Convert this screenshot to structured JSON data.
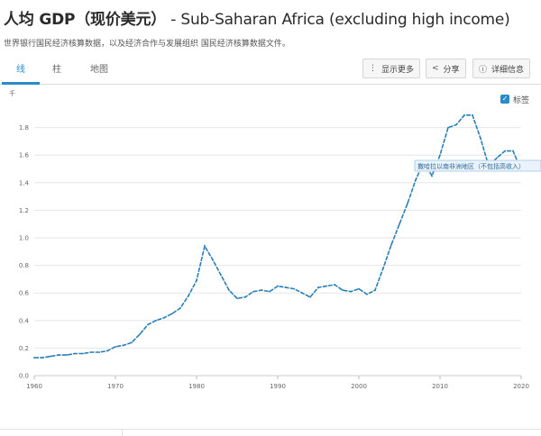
{
  "header": {
    "title_cn": "人均 GDP（现价美元）",
    "title_en": " - Sub-Saharan Africa (excluding high income)",
    "subtitle": "世界银行国民经济核算数据，以及经济合作与发展组织 国民经济核算数据文件。"
  },
  "tabs": [
    {
      "label": "线"
    },
    {
      "label": "柱"
    },
    {
      "label": "地图"
    }
  ],
  "toolbar": {
    "more_label": "显示更多",
    "share_label": "分享",
    "details_label": "详细信息"
  },
  "legend": {
    "label": "标签",
    "checked": "✓"
  },
  "chart_data": {
    "type": "line",
    "y_unit": "千",
    "ylim": [
      0,
      2.0
    ],
    "y_ticks": [
      "0.0",
      "0.2",
      "0.4",
      "0.6",
      "0.8",
      "1.0",
      "1.2",
      "1.4",
      "1.6",
      "1.8"
    ],
    "x_ticks": [
      "1960",
      "1970",
      "1980",
      "1990",
      "2000",
      "2010",
      "2020"
    ],
    "line_color": "#2a7fb8",
    "series": [
      {
        "name": "撒哈拉以南非洲地区（不包括高收入）",
        "x": [
          1960,
          1961,
          1962,
          1963,
          1964,
          1965,
          1966,
          1967,
          1968,
          1969,
          1970,
          1971,
          1972,
          1973,
          1974,
          1975,
          1976,
          1977,
          1978,
          1979,
          1980,
          1981,
          1982,
          1983,
          1984,
          1985,
          1986,
          1987,
          1988,
          1989,
          1990,
          1991,
          1992,
          1993,
          1994,
          1995,
          1996,
          1997,
          1998,
          1999,
          2000,
          2001,
          2002,
          2003,
          2004,
          2005,
          2006,
          2007,
          2008,
          2009,
          2010,
          2011,
          2012,
          2013,
          2014,
          2015,
          2016,
          2017,
          2018,
          2019,
          2020
        ],
        "values": [
          0.13,
          0.13,
          0.14,
          0.15,
          0.15,
          0.16,
          0.16,
          0.17,
          0.17,
          0.18,
          0.21,
          0.22,
          0.24,
          0.3,
          0.37,
          0.4,
          0.42,
          0.45,
          0.49,
          0.58,
          0.69,
          0.94,
          0.84,
          0.73,
          0.62,
          0.56,
          0.57,
          0.61,
          0.62,
          0.61,
          0.65,
          0.64,
          0.63,
          0.6,
          0.57,
          0.64,
          0.65,
          0.66,
          0.62,
          0.61,
          0.63,
          0.59,
          0.62,
          0.78,
          0.95,
          1.1,
          1.25,
          1.42,
          1.55,
          1.45,
          1.6,
          1.8,
          1.82,
          1.89,
          1.89,
          1.72,
          1.52,
          1.58,
          1.63,
          1.63,
          1.49
        ]
      }
    ],
    "annotation": "撒哈拉以南非洲地区（不包括高收入）",
    "grid": true,
    "legend_position": "top-right"
  }
}
